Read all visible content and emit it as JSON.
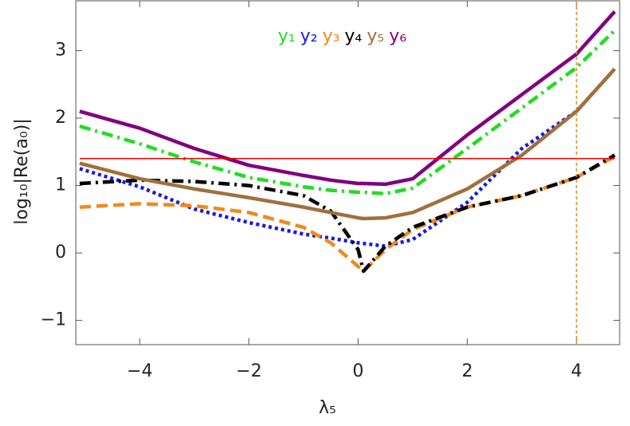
{
  "chart_data": {
    "type": "line",
    "xlabel": "λ₅",
    "ylabel": "log₁₀|Re(a₀)|",
    "x": [
      -5.1,
      -4,
      -3,
      -2,
      -1,
      -0.5,
      0,
      0.1,
      0.5,
      1,
      2,
      3,
      4,
      4.7
    ],
    "series": [
      {
        "name": "y₁",
        "color": "#22dd22",
        "dash": "14 6 3 6",
        "values": [
          1.88,
          1.62,
          1.35,
          1.12,
          0.98,
          0.93,
          0.9,
          0.9,
          0.88,
          0.96,
          1.55,
          2.15,
          2.75,
          3.3
        ]
      },
      {
        "name": "y₂",
        "color": "#1a1adc",
        "dash": "4 4",
        "values": [
          1.25,
          0.98,
          0.65,
          0.45,
          0.28,
          0.22,
          0.15,
          0.14,
          0.1,
          0.2,
          0.75,
          1.55,
          2.1,
          2.73
        ]
      },
      {
        "name": "y₃",
        "color": "#f08a1e",
        "dash": "14 7",
        "values": [
          0.68,
          0.73,
          0.7,
          0.6,
          0.38,
          0.15,
          -0.2,
          -0.27,
          0.05,
          0.35,
          0.68,
          0.85,
          1.12,
          1.43
        ]
      },
      {
        "name": "y₄",
        "color": "#000000",
        "dash": "14 6 3 6",
        "values": [
          1.03,
          1.08,
          1.06,
          1.0,
          0.85,
          0.62,
          0.05,
          -0.27,
          0.1,
          0.38,
          0.68,
          0.85,
          1.12,
          1.45
        ]
      },
      {
        "name": "y₅",
        "color": "#a0703c",
        "dash": "",
        "values": [
          1.33,
          1.1,
          0.95,
          0.82,
          0.68,
          0.6,
          0.52,
          0.51,
          0.52,
          0.6,
          0.95,
          1.45,
          2.1,
          2.73
        ]
      },
      {
        "name": "y₆",
        "color": "#800080",
        "dash": "",
        "values": [
          2.1,
          1.85,
          1.55,
          1.3,
          1.15,
          1.08,
          1.03,
          1.03,
          1.02,
          1.1,
          1.75,
          2.35,
          2.95,
          3.58
        ]
      }
    ],
    "hline": 1.4,
    "hline_color": "#ee0000",
    "vline": 4,
    "vline_color": "#e08a20",
    "xlim": [
      -5.17,
      4.79
    ],
    "ylim": [
      -1.36,
      3.74
    ],
    "xticks": [
      {
        "value": -4,
        "label": "−4"
      },
      {
        "value": -2,
        "label": "−2"
      },
      0,
      2,
      4
    ],
    "yticks": [
      {
        "value": -1,
        "label": "−1"
      },
      0,
      1,
      2,
      3
    ],
    "grid": false
  }
}
